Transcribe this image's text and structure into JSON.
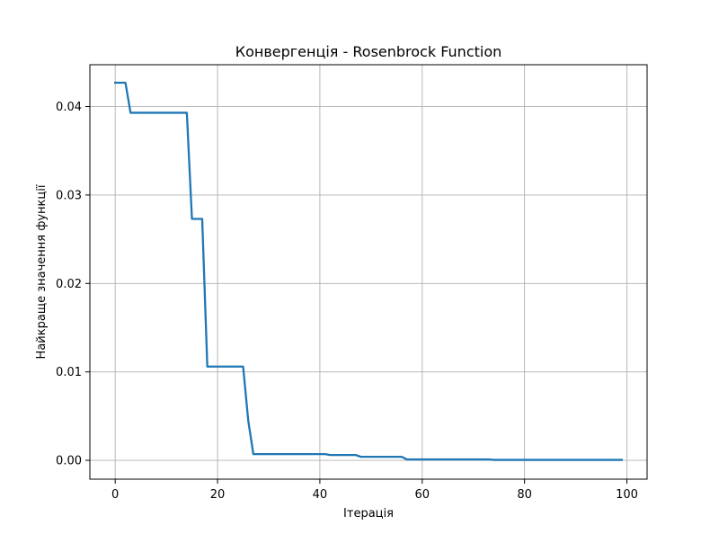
{
  "chart_data": {
    "type": "line",
    "title": "Конвергенція - Rosenbrock Function",
    "xlabel": "Ітерація",
    "ylabel": "Найкраще значення функції",
    "xlim": [
      -4.95,
      103.95
    ],
    "ylim": [
      -0.00213,
      0.04473
    ],
    "xticks": [
      0,
      20,
      40,
      60,
      80,
      100
    ],
    "xtick_labels": [
      "0",
      "20",
      "40",
      "60",
      "80",
      "100"
    ],
    "yticks": [
      0.0,
      0.01,
      0.02,
      0.03,
      0.04
    ],
    "ytick_labels": [
      "0.00",
      "0.01",
      "0.02",
      "0.03",
      "0.04"
    ],
    "grid": true,
    "legend": "none",
    "series": [
      {
        "color": "#1f77b4",
        "x": [
          0,
          2,
          3,
          14,
          15,
          17,
          18,
          25,
          26,
          27,
          41,
          42,
          47,
          48,
          56,
          57,
          73,
          74,
          99
        ],
        "y": [
          0.0427,
          0.0427,
          0.0393,
          0.0393,
          0.0273,
          0.0273,
          0.0106,
          0.0106,
          0.0045,
          0.0007,
          0.0007,
          0.0006,
          0.0006,
          0.0004,
          0.0004,
          0.0001,
          0.0001,
          5e-05,
          5e-05
        ]
      }
    ]
  }
}
